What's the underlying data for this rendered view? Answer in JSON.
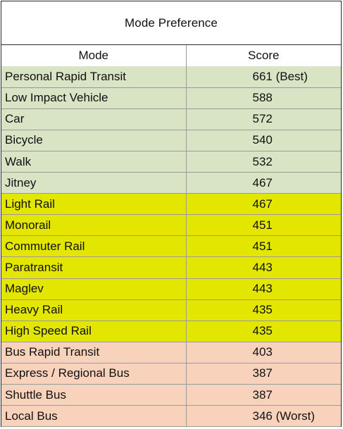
{
  "title": "Mode Preference",
  "columns": {
    "mode": "Mode",
    "score": "Score"
  },
  "tier_colors": {
    "green": "#d8e4c4",
    "yellow": "#e2e600",
    "peach": "#f9d2bc"
  },
  "rows": [
    {
      "mode": "Personal Rapid Transit",
      "score": "661 (Best)",
      "tier": "green"
    },
    {
      "mode": "Low Impact Vehicle",
      "score": "588",
      "tier": "green"
    },
    {
      "mode": "Car",
      "score": "572",
      "tier": "green"
    },
    {
      "mode": "Bicycle",
      "score": "540",
      "tier": "green"
    },
    {
      "mode": "Walk",
      "score": "532",
      "tier": "green"
    },
    {
      "mode": "Jitney",
      "score": "467",
      "tier": "green"
    },
    {
      "mode": "Light Rail",
      "score": "467",
      "tier": "yellow"
    },
    {
      "mode": "Monorail",
      "score": "451",
      "tier": "yellow"
    },
    {
      "mode": "Commuter Rail",
      "score": "451",
      "tier": "yellow"
    },
    {
      "mode": "Paratransit",
      "score": "443",
      "tier": "yellow"
    },
    {
      "mode": "Maglev",
      "score": "443",
      "tier": "yellow"
    },
    {
      "mode": "Heavy Rail",
      "score": "435",
      "tier": "yellow"
    },
    {
      "mode": "High Speed Rail",
      "score": "435",
      "tier": "yellow"
    },
    {
      "mode": "Bus Rapid Transit",
      "score": "403",
      "tier": "peach"
    },
    {
      "mode": "Express / Regional Bus",
      "score": "387",
      "tier": "peach"
    },
    {
      "mode": "Shuttle Bus",
      "score": "387",
      "tier": "peach"
    },
    {
      "mode": "Local Bus",
      "score": "346 (Worst)",
      "tier": "peach"
    }
  ]
}
